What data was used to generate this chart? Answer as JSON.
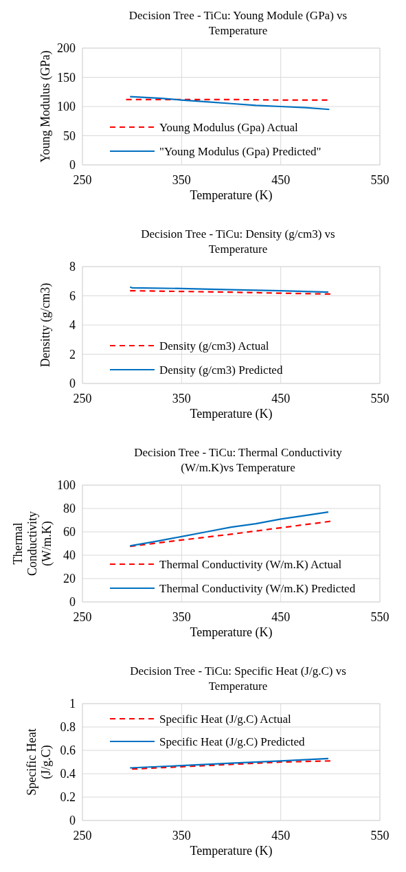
{
  "chart_data": [
    {
      "type": "line",
      "title": "Decision Tree - TiCu: Young Module (GPa) vs Temperature",
      "xlabel": "Temperature (K)",
      "ylabel": "Young Modulus (GPa)",
      "xlim": [
        250,
        550
      ],
      "xticks": [
        250,
        350,
        450,
        550
      ],
      "ylim": [
        0,
        200
      ],
      "yticks": [
        0,
        50,
        100,
        150,
        200
      ],
      "grid": true,
      "legend": "bottom",
      "marker": "none",
      "series": [
        {
          "name": "Young Modulus (Gpa) Actual",
          "color": "#ff0000",
          "line_style": "dashed",
          "x": [
            294,
            350,
            400,
            450,
            497
          ],
          "values": [
            112,
            112,
            112,
            111,
            111
          ]
        },
        {
          "name": "\"Young Modulus (Gpa) Predicted\"",
          "color": "#0070c0",
          "line_style": "solid",
          "x": [
            298,
            330,
            350,
            375,
            400,
            425,
            450,
            475,
            499
          ],
          "values": [
            117,
            114,
            111,
            108,
            105,
            102,
            100,
            98,
            95
          ]
        }
      ]
    },
    {
      "type": "line",
      "title": "Decision Tree - TiCu: Density (g/cm3) vs Temperature",
      "xlabel": "Temperature (K)",
      "ylabel": "Densitty (g/cm3)",
      "xlim": [
        250,
        550
      ],
      "xticks": [
        250,
        350,
        450,
        550
      ],
      "ylim": [
        0,
        8
      ],
      "yticks": [
        0,
        2,
        4,
        6,
        8
      ],
      "grid": true,
      "legend": "bottom",
      "marker": "none",
      "series": [
        {
          "name": "Density (g/cm3) Actual",
          "color": "#ff0000",
          "line_style": "dashed",
          "x": [
            298,
            350,
            400,
            450,
            500
          ],
          "values": [
            6.35,
            6.3,
            6.25,
            6.18,
            6.12
          ]
        },
        {
          "name": "Density (g/cm3)  Predicted",
          "color": "#0070c0",
          "line_style": "solid",
          "x": [
            298,
            300,
            350,
            400,
            450,
            498
          ],
          "values": [
            6.6,
            6.55,
            6.5,
            6.42,
            6.35,
            6.25
          ]
        }
      ]
    },
    {
      "type": "line",
      "title": "Decision Tree - TiCu: Thermal Conductivity (W/m.K)vs Temperature",
      "xlabel": "Temperature (K)",
      "ylabel": "Thermal Conductivity (W/m.K)",
      "xlim": [
        250,
        550
      ],
      "xticks": [
        250,
        350,
        450,
        550
      ],
      "ylim": [
        0,
        100
      ],
      "yticks": [
        0,
        20,
        40,
        60,
        80,
        100
      ],
      "grid": true,
      "legend": "bottom",
      "marker": "none",
      "series": [
        {
          "name": "Thermal Conductivity (W/m.K) Actual",
          "color": "#ff0000",
          "line_style": "dashed",
          "x": [
            298,
            350,
            400,
            450,
            500
          ],
          "values": [
            47.5,
            53,
            58,
            63.5,
            69
          ]
        },
        {
          "name": "Thermal Conductivity (W/m.K)  Predicted",
          "color": "#0070c0",
          "line_style": "solid",
          "x": [
            298,
            325,
            350,
            375,
            400,
            425,
            450,
            475,
            498
          ],
          "values": [
            48,
            52,
            56,
            60,
            64,
            67,
            71,
            74,
            77
          ]
        }
      ]
    },
    {
      "type": "line",
      "title": "Decision Tree - TiCu: Specific Heat (J/g.C) vs Temperature",
      "xlabel": "Temperature (K)",
      "ylabel": "Specific Heat (J/g.C)",
      "xlim": [
        250,
        550
      ],
      "xticks": [
        250,
        350,
        450,
        550
      ],
      "ylim": [
        0,
        1
      ],
      "yticks": [
        0,
        0.2,
        0.4,
        0.6,
        0.8,
        1
      ],
      "grid": true,
      "legend": "top",
      "marker": "none",
      "series": [
        {
          "name": "Specific Heat (J/g.C) Actual",
          "color": "#ff0000",
          "line_style": "dashed",
          "x": [
            300,
            350,
            400,
            450,
            500
          ],
          "values": [
            0.44,
            0.46,
            0.48,
            0.5,
            0.51
          ]
        },
        {
          "name": "Specific Heat (J/g.C) Predicted",
          "color": "#0070c0",
          "line_style": "solid",
          "x": [
            298,
            350,
            400,
            450,
            498
          ],
          "values": [
            0.45,
            0.47,
            0.49,
            0.51,
            0.53
          ]
        }
      ]
    }
  ]
}
